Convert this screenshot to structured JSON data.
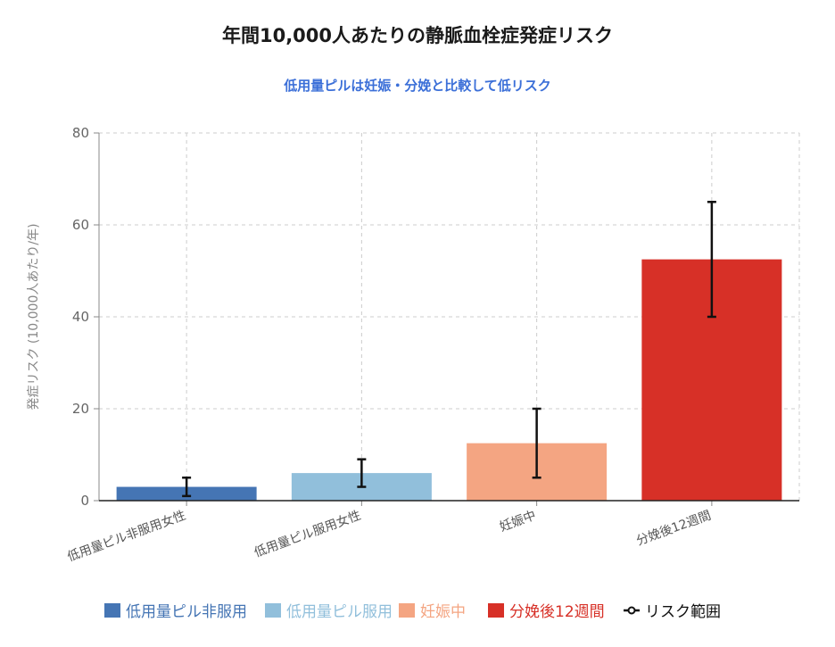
{
  "chart_data": {
    "type": "bar",
    "title": "年間10,000人あたりの静脈血栓症発症リスク",
    "subtitle": "低用量ピルは妊娠・分娩と比較して低リスク",
    "ylabel": "発症リスク (10,000人あたり/年)",
    "xlabel": "",
    "ylim": [
      0,
      80
    ],
    "yticks": [
      0,
      20,
      40,
      60,
      80
    ],
    "grid": true,
    "legend_position": "bottom",
    "categories": [
      "低用量ピル非服用女性",
      "低用量ピル服用女性",
      "妊娠中",
      "分娩後12週間"
    ],
    "values": [
      3,
      6,
      12.5,
      52.5
    ],
    "error_low": [
      1,
      3,
      5,
      40
    ],
    "error_high": [
      5,
      9,
      20,
      65
    ],
    "colors": [
      "#4575b4",
      "#91bfdb",
      "#f4a582",
      "#d73027"
    ],
    "subtitle_color": "#3b6fd8",
    "legend": [
      {
        "label": "低用量ピル非服用",
        "color": "#4575b4"
      },
      {
        "label": "低用量ピル服用",
        "color": "#91bfdb"
      },
      {
        "label": "妊娠中",
        "color": "#f4a582"
      },
      {
        "label": "分娩後12週間",
        "color": "#d73027"
      },
      {
        "label": "リスク範囲",
        "color": "#111111",
        "marker": "error-bar"
      }
    ]
  }
}
